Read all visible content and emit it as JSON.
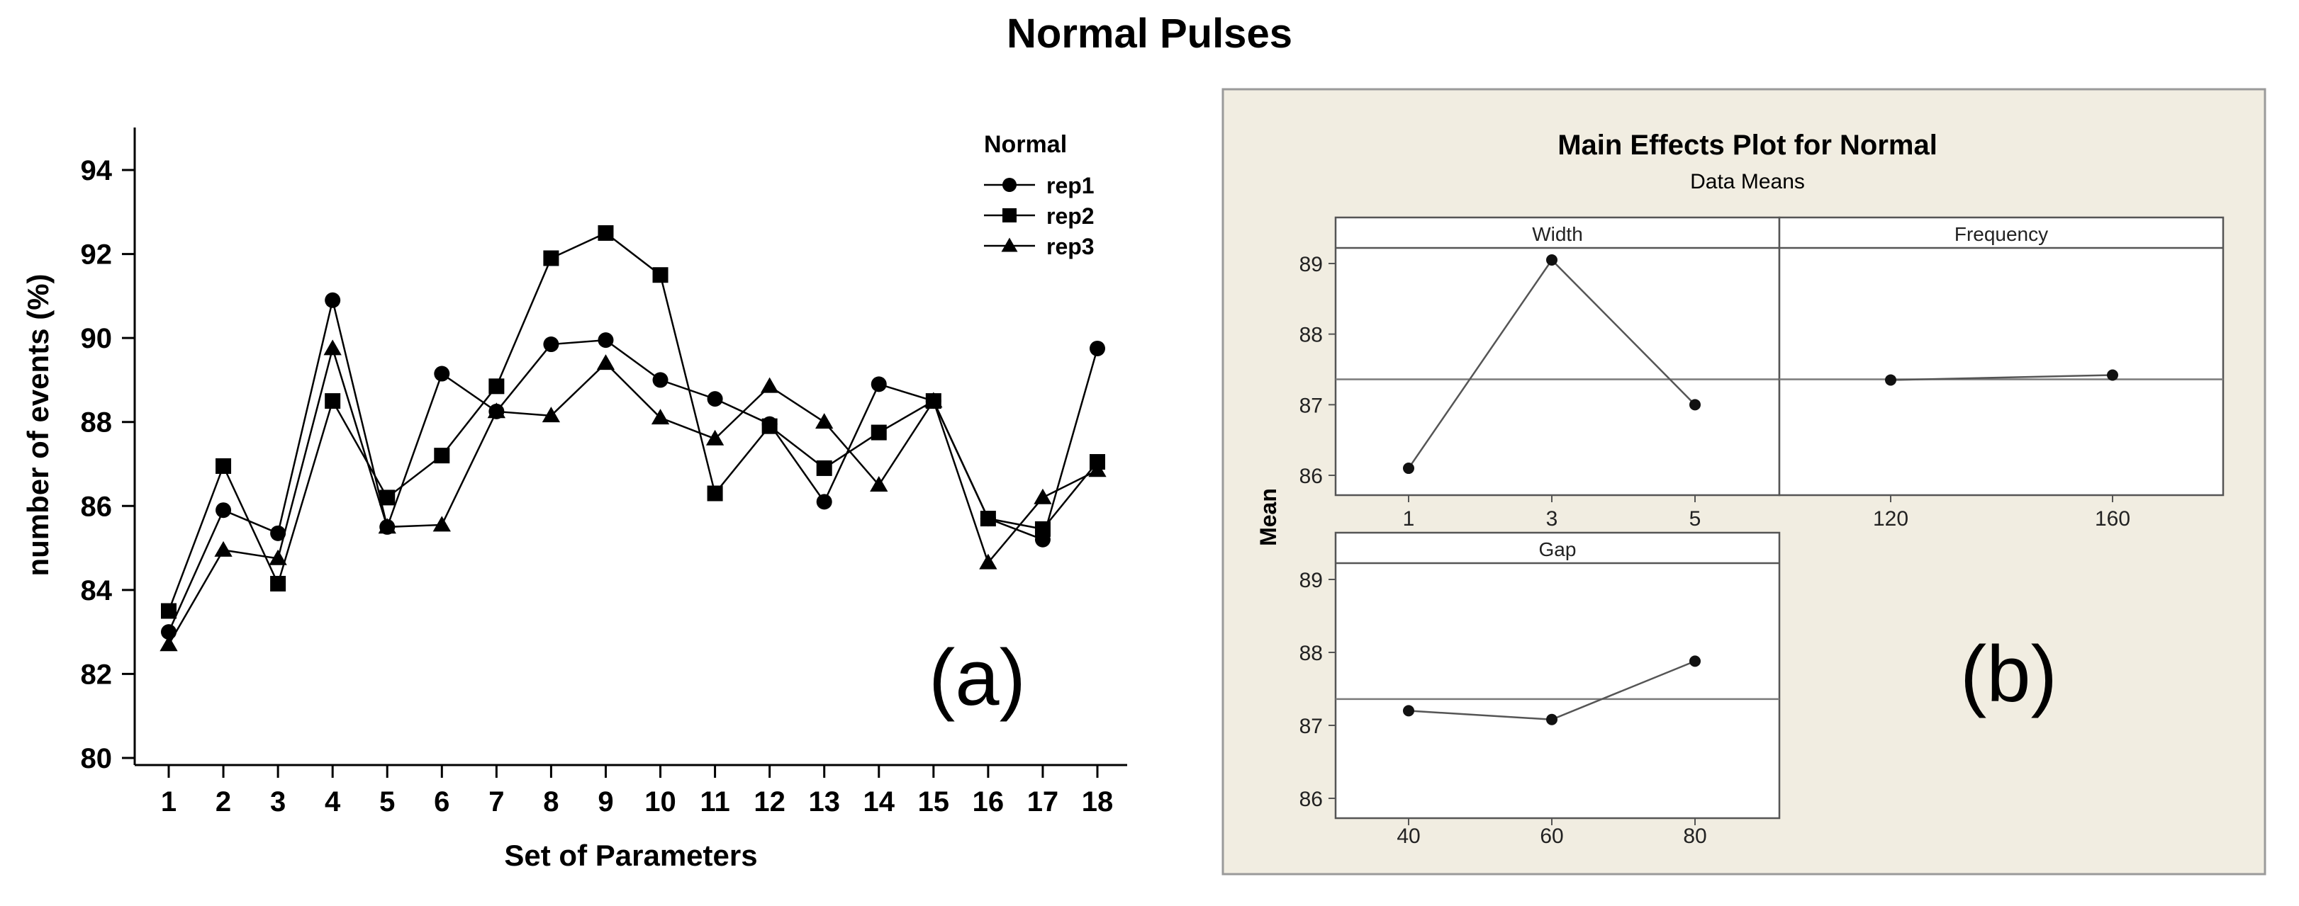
{
  "title": "Normal Pulses",
  "chart_data": [
    {
      "type": "line",
      "panel_label": "(a)",
      "xlabel": "Set of Parameters",
      "ylabel": "number of events (%)",
      "x": [
        1,
        2,
        3,
        4,
        5,
        6,
        7,
        8,
        9,
        10,
        11,
        12,
        13,
        14,
        15,
        16,
        17,
        18
      ],
      "ylim": [
        80,
        94
      ],
      "yticks": [
        80,
        82,
        84,
        86,
        88,
        90,
        92,
        94
      ],
      "legend_title": "Normal",
      "legend_position": "top-right",
      "grid": false,
      "series": [
        {
          "name": "rep1",
          "marker": "circle",
          "values": [
            83.0,
            85.9,
            85.35,
            90.9,
            85.5,
            89.15,
            88.25,
            89.85,
            89.95,
            89.0,
            88.55,
            87.95,
            86.1,
            88.9,
            88.5,
            85.7,
            85.2,
            89.75
          ]
        },
        {
          "name": "rep2",
          "marker": "square",
          "values": [
            83.5,
            86.95,
            84.15,
            88.5,
            86.2,
            87.2,
            88.85,
            91.9,
            92.5,
            91.5,
            86.3,
            87.9,
            86.9,
            87.75,
            88.5,
            85.7,
            85.45,
            87.05
          ]
        },
        {
          "name": "rep3",
          "marker": "triangle",
          "values": [
            82.7,
            84.95,
            84.75,
            89.75,
            85.5,
            85.55,
            88.25,
            88.15,
            89.4,
            88.1,
            87.6,
            88.85,
            88.0,
            86.5,
            88.5,
            84.65,
            86.2,
            86.85
          ]
        }
      ]
    },
    {
      "type": "line",
      "panel_label": "(b)",
      "title": "Main Effects Plot for Normal",
      "subtitle": "Data Means",
      "ylabel": "Mean",
      "ylim": [
        86,
        89
      ],
      "yticks": [
        86,
        87,
        88,
        89
      ],
      "reference_mean": 87.36,
      "panels": [
        {
          "name": "Width",
          "categories": [
            "1",
            "3",
            "5"
          ],
          "values": [
            86.1,
            89.05,
            87.0
          ]
        },
        {
          "name": "Frequency",
          "categories": [
            "120",
            "160"
          ],
          "values": [
            87.35,
            87.42
          ]
        },
        {
          "name": "Gap",
          "categories": [
            "40",
            "60",
            "80"
          ],
          "values": [
            87.2,
            87.08,
            87.88
          ]
        }
      ]
    }
  ]
}
